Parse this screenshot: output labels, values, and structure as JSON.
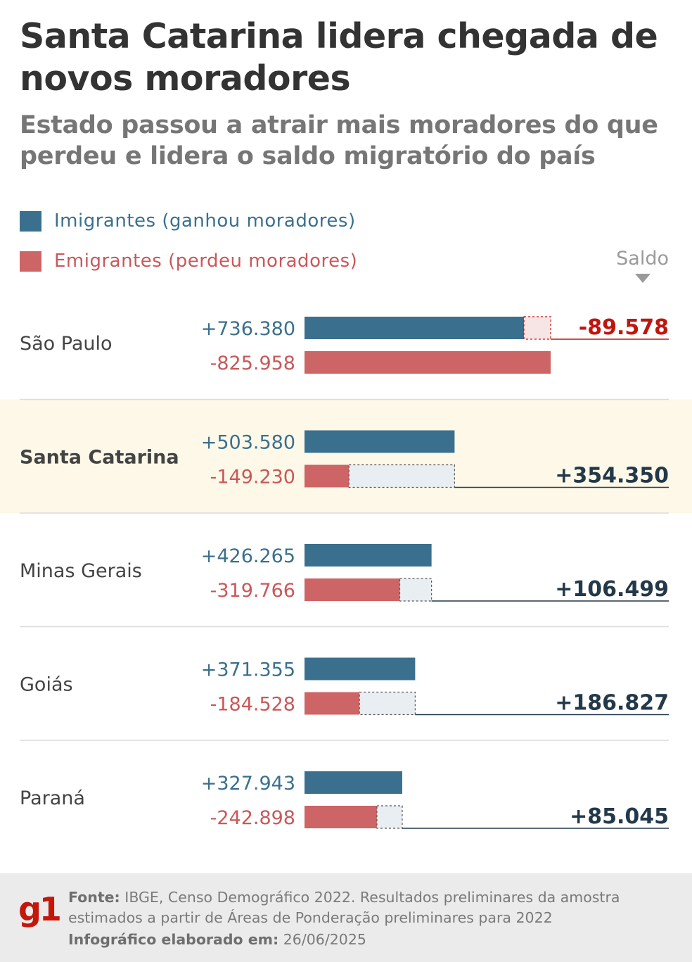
{
  "header": {
    "title": "Santa Catarina lidera chegada de novos moradores",
    "subtitle": "Estado passou a atrair mais moradores do que perdeu e lidera o saldo migratório do país"
  },
  "legend": {
    "immigrants_label": "Imigrantes (ganhou moradores)",
    "emigrants_label": "Emigrantes (perdeu moradores)",
    "saldo_label": "Saldo"
  },
  "colors": {
    "immigrants": "#3a708e",
    "emigrants": "#cd6466",
    "immigrants_text": "#3a708e",
    "emigrants_text": "#c8585a",
    "positive_saldo": "#23394a",
    "negative_saldo": "#c0150f",
    "highlight_bg": "#fdf8e8",
    "gap_fill_positive": "#e9eef2",
    "gap_fill_negative": "#f7e4e4"
  },
  "chart_data": {
    "type": "bar",
    "categories": [
      "São Paulo",
      "Santa Catarina",
      "Minas Gerais",
      "Goiás",
      "Paraná"
    ],
    "series": [
      {
        "name": "Imigrantes (ganhou moradores)",
        "values": [
          736380,
          503580,
          426265,
          371355,
          327943
        ],
        "labels": [
          "+736.380",
          "+503.580",
          "+426.265",
          "+371.355",
          "+327.943"
        ]
      },
      {
        "name": "Emigrantes (perdeu moradores)",
        "values": [
          825958,
          149230,
          319766,
          184528,
          242898
        ],
        "labels": [
          "-825.958",
          "-149.230",
          "-319.766",
          "-184.528",
          "-242.898"
        ]
      }
    ],
    "saldo": {
      "name": "Saldo",
      "values": [
        -89578,
        354350,
        106499,
        186827,
        85045
      ],
      "labels": [
        "-89.578",
        "+354.350",
        "+106.499",
        "+186.827",
        "+85.045"
      ]
    },
    "highlight": "Santa Catarina",
    "xlim": [
      0,
      825958
    ]
  },
  "footer": {
    "logo": "g1",
    "source_label": "Fonte:",
    "source_text": "IBGE, Censo Demográfico 2022. Resultados preliminares da amostra estimados a partir de Áreas de Ponderação preliminares para 2022",
    "date_label": "Infográfico elaborado em:",
    "date_text": "26/06/2025"
  }
}
